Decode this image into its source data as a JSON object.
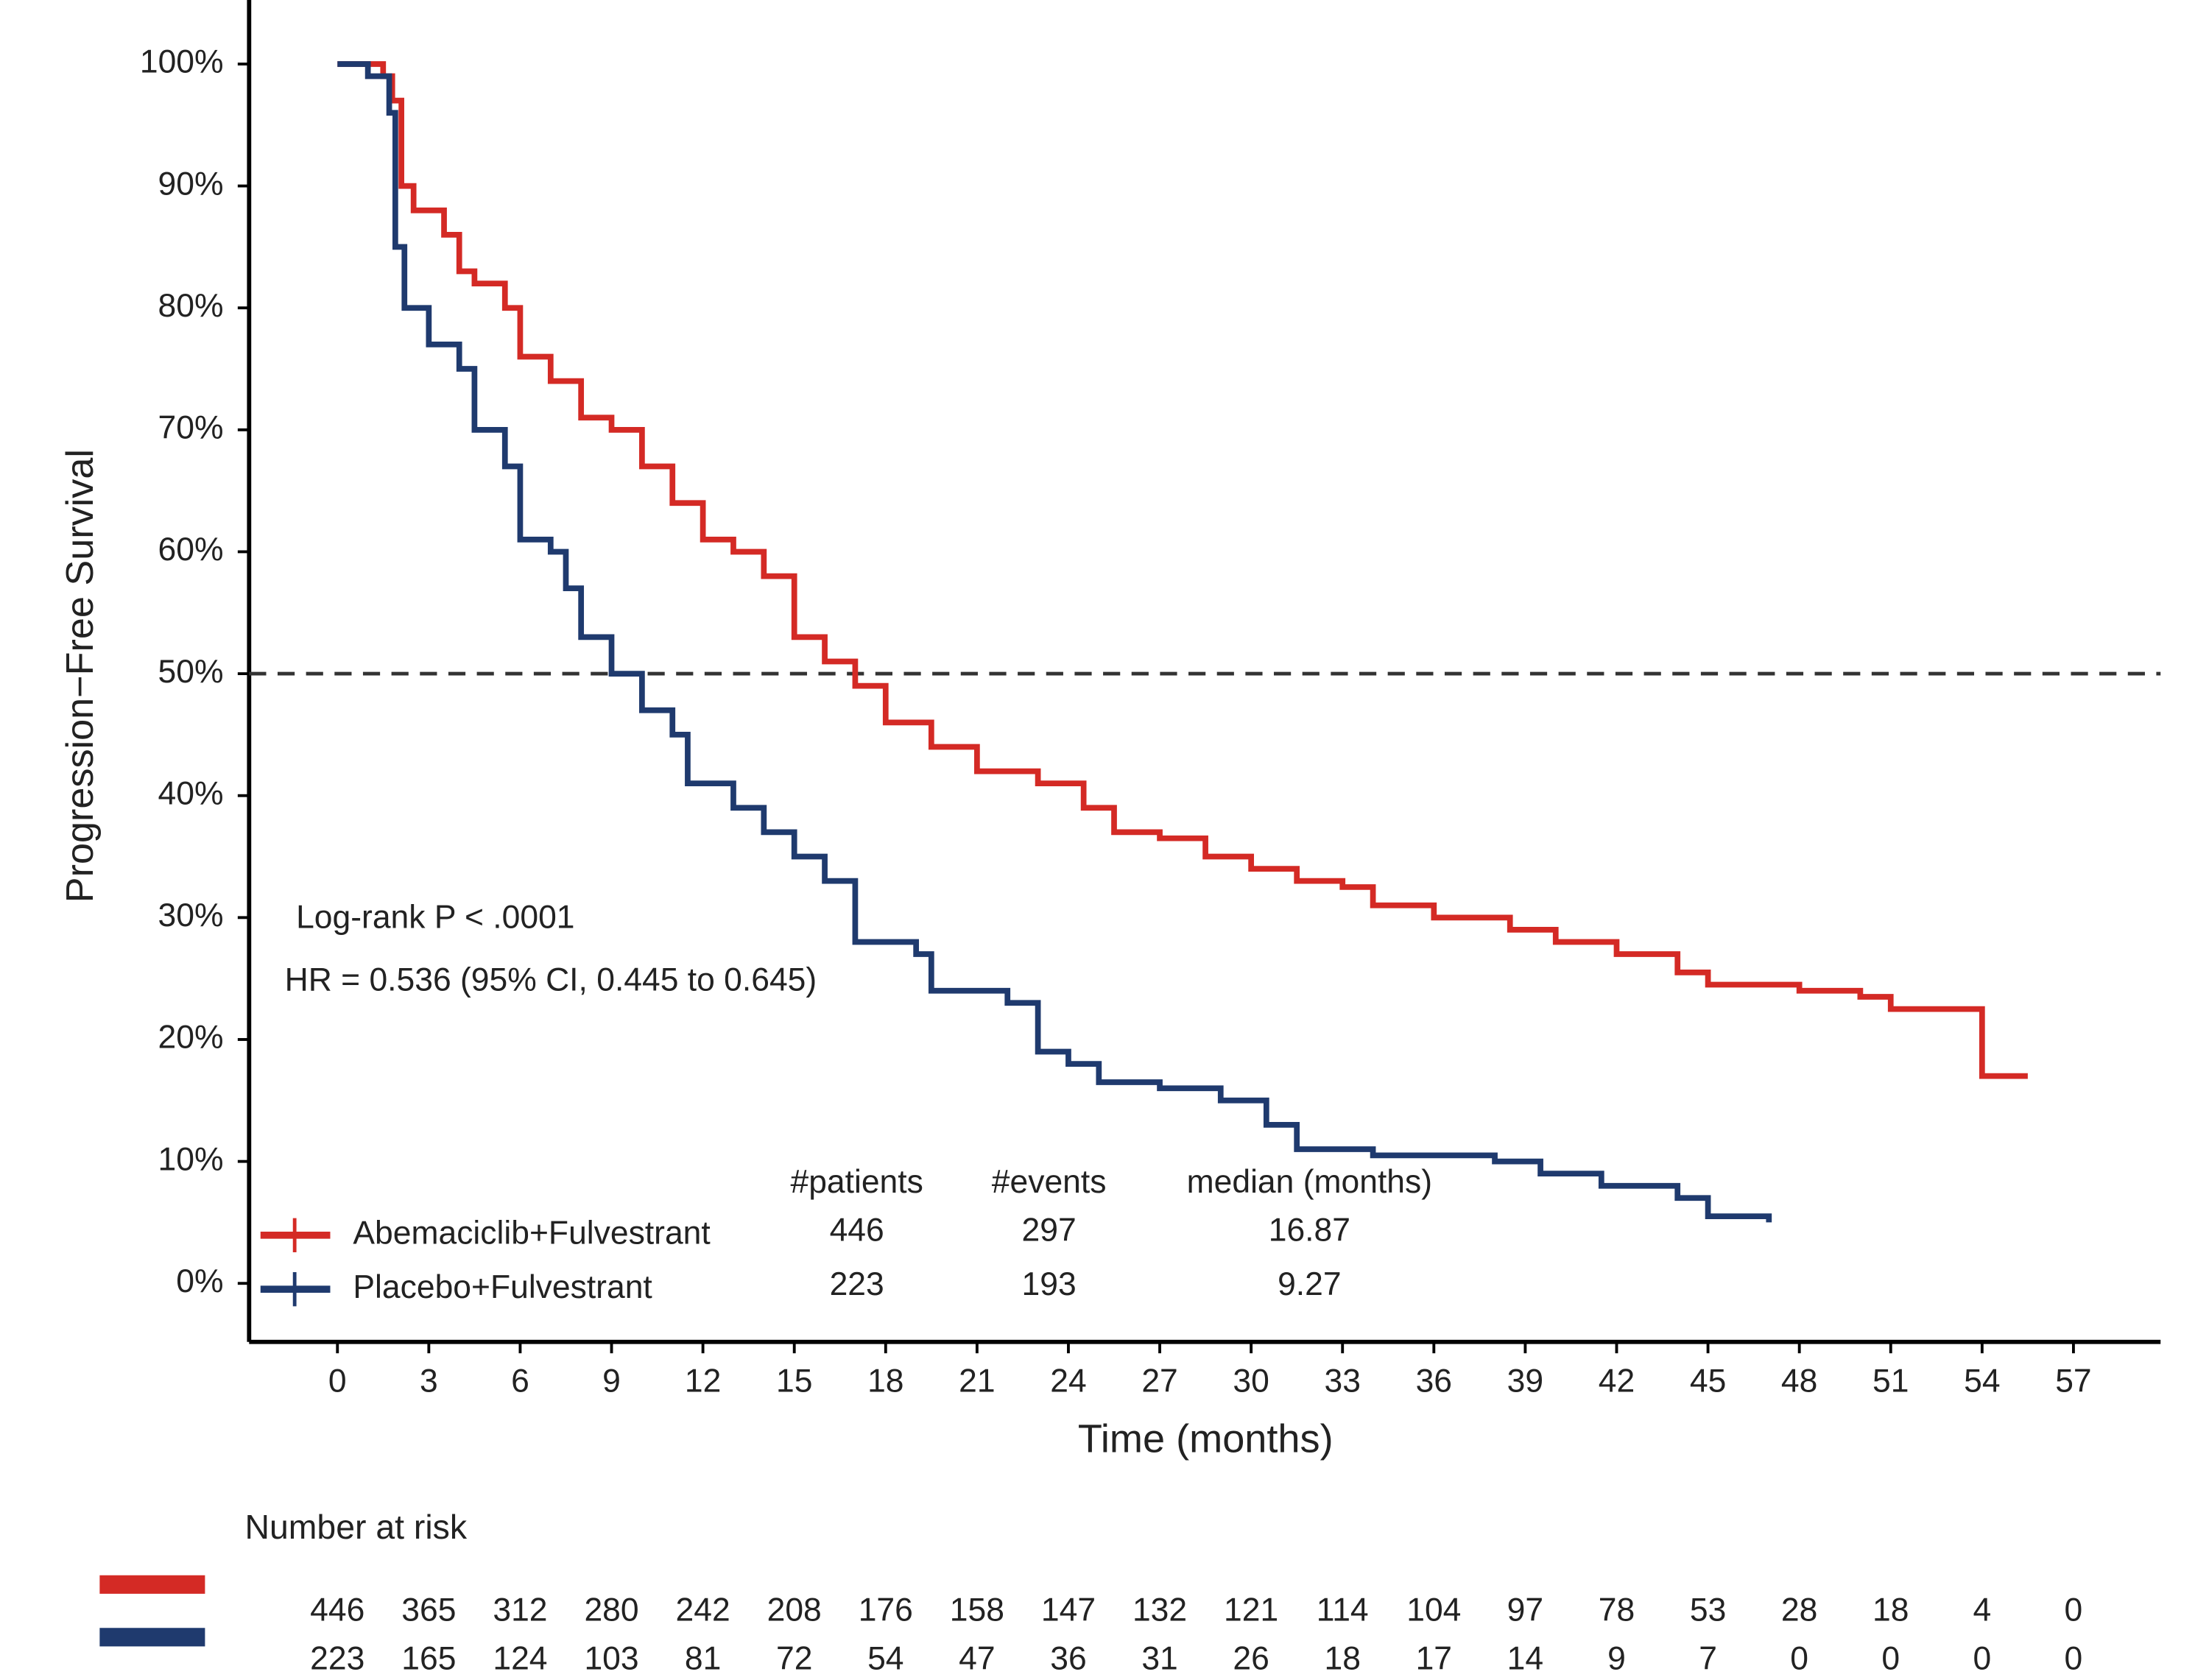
{
  "chart_data": {
    "type": "step",
    "ylabel": "Progression−Free Survival",
    "xlabel": "Time (months)",
    "xlim": [
      -2.9,
      59.86
    ],
    "ylim": [
      -4.8,
      105.25
    ],
    "xticks": [
      0,
      3,
      6,
      9,
      12,
      15,
      18,
      21,
      24,
      27,
      30,
      33,
      36,
      39,
      42,
      45,
      48,
      51,
      54,
      57
    ],
    "yticks": [
      {
        "value": 0,
        "label": "0%"
      },
      {
        "value": 10,
        "label": "10%"
      },
      {
        "value": 20,
        "label": "20%"
      },
      {
        "value": 30,
        "label": "30%"
      },
      {
        "value": 40,
        "label": "40%"
      },
      {
        "value": 50,
        "label": "50%"
      },
      {
        "value": 60,
        "label": "60%"
      },
      {
        "value": 70,
        "label": "70%"
      },
      {
        "value": 80,
        "label": "80%"
      },
      {
        "value": 90,
        "label": "90%"
      },
      {
        "value": 100,
        "label": "100%"
      }
    ],
    "hline": 50,
    "annotations": [
      "Log-rank P < .0001",
      "HR =  0.536 (95% CI, 0.445 to 0.645)"
    ],
    "table_headers": [
      "#patients",
      "#events",
      "median (months)"
    ],
    "series": [
      {
        "name": "Abemaciclib+Fulvestrant",
        "color": "#d42a25",
        "patients": 446,
        "events": 297,
        "median": 16.87,
        "x": [
          0,
          1.5,
          1.8,
          2.1,
          2.5,
          3.5,
          4,
          4.5,
          5.5,
          6,
          7,
          8,
          9,
          10,
          11,
          12,
          13,
          14,
          15,
          16,
          17,
          18,
          19.5,
          21,
          23,
          24.5,
          25.5,
          27,
          28.5,
          30,
          31.5,
          33,
          34,
          36,
          38.5,
          40,
          42,
          44,
          45,
          48,
          50,
          51,
          54,
          55.5
        ],
        "values": [
          100,
          99,
          97,
          90,
          88,
          86,
          83,
          82,
          80,
          76,
          74,
          71,
          70,
          67,
          64,
          61,
          60,
          58,
          53,
          51,
          49,
          46,
          44,
          42,
          41,
          39,
          37,
          36.5,
          35,
          34,
          33,
          32.5,
          31,
          30,
          29,
          28,
          27,
          25.5,
          24.5,
          24,
          23.5,
          22.5,
          17,
          17
        ]
      },
      {
        "name": "Placebo+Fulvestrant",
        "color": "#1f3a6e",
        "patients": 223,
        "events": 193,
        "median": 9.27,
        "x": [
          0,
          1,
          1.7,
          1.9,
          2.2,
          3,
          4,
          4.5,
          5.5,
          6,
          7,
          7.5,
          8,
          9,
          10,
          11,
          11.5,
          13,
          14,
          15,
          16,
          17,
          19,
          19.5,
          22,
          23,
          24,
          25,
          27,
          29,
          30.5,
          31.5,
          34,
          38,
          39.5,
          41.5,
          44,
          45,
          47
        ],
        "values": [
          100,
          99,
          96,
          85,
          80,
          77,
          75,
          70,
          67,
          61,
          60,
          57,
          53,
          50,
          47,
          45,
          41,
          39,
          37,
          35,
          33,
          28,
          27,
          24,
          23,
          19,
          18,
          16.5,
          16,
          15,
          13,
          11,
          10.5,
          10,
          9,
          8,
          7,
          5.5,
          5
        ]
      }
    ],
    "risk_title": "Number at risk",
    "risk": [
      [
        446,
        365,
        312,
        280,
        242,
        208,
        176,
        158,
        147,
        132,
        121,
        114,
        104,
        97,
        78,
        53,
        28,
        18,
        4,
        0
      ],
      [
        223,
        165,
        124,
        103,
        81,
        72,
        54,
        47,
        36,
        31,
        26,
        18,
        17,
        14,
        9,
        7,
        0,
        0,
        0,
        0
      ]
    ]
  }
}
